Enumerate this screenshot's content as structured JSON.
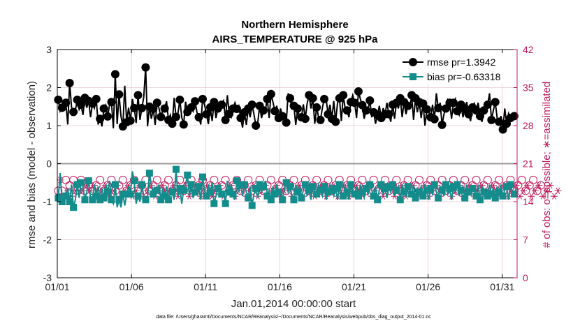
{
  "chart_data": {
    "type": "line",
    "title": "Northern Hemisphere",
    "subtitle": "AIRS_TEMPERATURE @ 925 hPa",
    "xlabel": "Jan.01,2014 00:00:00 start",
    "ylabel": "rmse and bias (model - observation)",
    "ylabel_right": "# of obs: o=possible; ∗=assimilated",
    "footnote": "data file: /Users/gharamti/Documents/NCAR/Reanalysis/~/Documents/NCAR/Reanalysis/webpub/obs_diag_output_2014-01.nc",
    "x_ticks": [
      "01/01",
      "01/06",
      "01/11",
      "01/16",
      "01/21",
      "01/26",
      "01/31"
    ],
    "x_tick_days": [
      1,
      6,
      11,
      16,
      21,
      26,
      31
    ],
    "x_range_days": [
      1,
      32
    ],
    "y_ticks": [
      3,
      2,
      1,
      0,
      -1,
      -2,
      -3
    ],
    "ylim": [
      -3,
      3
    ],
    "y_right_ticks": [
      42,
      35,
      28,
      21,
      14,
      7,
      0
    ],
    "ylim_right": [
      0,
      42
    ],
    "grid": true,
    "legend_position": "top-right",
    "colors": {
      "rmse": "#000000",
      "bias": "#138c8c",
      "obs": "#c0185c",
      "zero_line": "#9a9a9a",
      "grid": "#e6c8d4"
    },
    "series": [
      {
        "name": "rmse pr=1.3942",
        "marker": "circle",
        "values": [
          1.68,
          1.38,
          1.47,
          1.42,
          1.6,
          1.03,
          2.12,
          1.48,
          1.36,
          1.4,
          1.68,
          1.43,
          1.55,
          1.28,
          1.73,
          1.47,
          1.65,
          1.22,
          1.58,
          1.46,
          1.7,
          1.03,
          1.18,
          0.98,
          1.45,
          1.54,
          1.24,
          1.55,
          1.62,
          0.93,
          2.35,
          1.04,
          1.82,
          1.25,
          0.98,
          2.05,
          1.09,
          1.47,
          1.13,
          1.7,
          1.46,
          1.07,
          1.8,
          1.15,
          1.46,
          1.75,
          2.53,
          0.98,
          1.5,
          1.18,
          1.44,
          1.02,
          1.6,
          1.46,
          1.23,
          1.4,
          1.45,
          1.64,
          1.15,
          1.28,
          1.05,
          1.73,
          1.23,
          1.32,
          1.68,
          1.22,
          1.03,
          1.63,
          1.36,
          1.48,
          1.48,
          1.38,
          1.64,
          1.35,
          1.22,
          1.03,
          1.7,
          1.55,
          1.3,
          1.04,
          1.48,
          1.12,
          1.62,
          1.2,
          1.45,
          1.58,
          1.55,
          1.65,
          1.15,
          1.8,
          1.31,
          1.22,
          1.45,
          1.6,
          1.44,
          1.52,
          1.2,
          0.95,
          1.35,
          1.02,
          1.45,
          1.22,
          1.55,
          1.3,
          1.0,
          1.08,
          1.52,
          1.2,
          1.4,
          1.4,
          1.7,
          1.2,
          1.83,
          1.62,
          1.38,
          1.52,
          1.2,
          1.45,
          1.25,
          1.1,
          1.08,
          1.85,
          1.72,
          1.45,
          1.52,
          1.02,
          1.45,
          1.18,
          1.22,
          1.56,
          1.18,
          1.58,
          1.8,
          1.45,
          1.72,
          1.05,
          1.48,
          1.22,
          1.15,
          1.46,
          1.7,
          1.7,
          1.3,
          1.55,
          1.18,
          1.65,
          1.1,
          1.6,
          1.72,
          1.12,
          1.8,
          1.45,
          1.4,
          1.22,
          1.62,
          1.8,
          1.6,
          1.2,
          1.9,
          1.7,
          1.54,
          1.18,
          1.4,
          1.42,
          1.66,
          1.22,
          1.35,
          1.05,
          1.28,
          1.52,
          1.2,
          1.46,
          1.3,
          1.6,
          1.3,
          1.1,
          1.55,
          1.18,
          1.6,
          1.45,
          1.72,
          1.22,
          1.62,
          1.3,
          1.52,
          1.45,
          1.8,
          1.15,
          1.72,
          1.35,
          1.62,
          1.2,
          1.58,
          1.0,
          1.43,
          1.38,
          1.22,
          1.55,
          1.17,
          1.85,
          1.46,
          1.6,
          1.02,
          1.3,
          1.45,
          1.68,
          1.6,
          1.18,
          1.6,
          1.7,
          1.38,
          1.28,
          1.55,
          1.22,
          1.45,
          1.62,
          1.3,
          1.12,
          1.48,
          1.58,
          1.4,
          1.6,
          1.25,
          1.1,
          1.4,
          1.45,
          1.55,
          1.85,
          1.15,
          1.4,
          1.62,
          1.2,
          1.1,
          1.25,
          0.9,
          1.45,
          1.05,
          1.32,
          1.2,
          1.15,
          1.25,
          1.28
        ]
      },
      {
        "name": "bias pr=-0.63318",
        "marker": "square",
        "values": [
          -0.9,
          -0.25,
          -1.0,
          -0.95,
          -0.85,
          -0.65,
          -1.0,
          -0.55,
          -1.15,
          -0.95,
          -0.55,
          -0.9,
          -0.5,
          -0.6,
          -0.95,
          -0.75,
          -0.45,
          -0.9,
          -0.95,
          -0.55,
          -0.85,
          -0.6,
          -0.95,
          -0.65,
          -0.9,
          -0.55,
          -0.75,
          -0.45,
          -0.95,
          -1.05,
          -0.55,
          -1.15,
          -0.95,
          -1.15,
          -0.8,
          -1.1,
          -0.8,
          -0.6,
          -0.8,
          -0.2,
          -0.45,
          -1.05,
          -0.85,
          -1.0,
          -0.55,
          -0.85,
          -0.95,
          -0.85,
          -0.25,
          -0.55,
          -0.8,
          -0.85,
          -0.7,
          -0.55,
          -0.95,
          -0.65,
          -0.85,
          -0.6,
          -0.95,
          -0.65,
          -0.75,
          -0.95,
          -0.15,
          -0.85,
          -0.65,
          -1.05,
          -0.7,
          -0.55,
          -0.3,
          -0.85,
          -0.55,
          -0.9,
          -0.75,
          -0.7,
          -0.6,
          -0.95,
          -0.35,
          -0.7,
          -0.85,
          -0.55,
          -0.75,
          -0.5,
          -1.05,
          -0.85,
          -0.65,
          -0.55,
          -0.8,
          -0.75,
          -1.05,
          -0.45,
          -0.75,
          -0.55,
          -0.8,
          -0.95,
          -0.45,
          -0.7,
          -0.55,
          -0.85,
          -0.55,
          -0.75,
          -0.9,
          -0.6,
          -1.1,
          -0.8,
          -0.65,
          -0.9,
          -0.55,
          -0.75,
          -0.6,
          -0.45,
          -0.85,
          -0.7,
          -0.95,
          -0.6,
          -0.8,
          -0.55,
          -0.75,
          -0.7,
          -0.95,
          -0.65,
          -0.5,
          -0.75,
          -0.6,
          -0.85,
          -0.95,
          -0.55,
          -0.75,
          -0.6,
          -0.9,
          -0.7,
          -0.55,
          -0.85,
          -0.7,
          -0.95,
          -0.6,
          -0.75,
          -0.8,
          -0.55,
          -0.7,
          -0.85,
          -0.6,
          -0.95,
          -0.75,
          -0.55,
          -0.7,
          -0.85,
          -0.65,
          -0.95,
          -0.55,
          -0.75,
          -0.85,
          -0.6,
          -0.75,
          -0.95,
          -0.55,
          -0.7,
          -0.8,
          -0.6,
          -0.85,
          -0.55,
          -0.75,
          -0.9,
          -0.65,
          -0.8,
          -0.55,
          -0.7,
          -0.85,
          -0.6,
          -0.95,
          -0.7,
          -0.55,
          -0.8,
          -0.65,
          -0.9,
          -0.6,
          -0.75,
          -0.55,
          -0.85,
          -0.7,
          -0.6,
          -0.95,
          -0.55,
          -0.75,
          -0.85,
          -0.6,
          -0.7,
          -0.8,
          -0.55,
          -0.9,
          -0.65,
          -0.75,
          -0.6,
          -0.85,
          -0.55,
          -0.7,
          -0.95,
          -0.65,
          -0.8,
          -0.55,
          -0.75,
          -0.9,
          -0.6,
          -0.7,
          -0.85,
          -0.55,
          -0.8,
          -0.65,
          -0.95,
          -0.6,
          -0.75,
          -0.55,
          -0.85,
          -0.7,
          -0.6,
          -0.9,
          -0.55,
          -0.75,
          -0.8,
          -0.65,
          -0.7,
          -0.85,
          -0.55,
          -0.95,
          -0.6,
          -0.75,
          -0.7,
          -0.85,
          -0.55,
          -0.8,
          -0.65,
          -0.9,
          -0.6,
          -0.75,
          -0.55,
          -0.85,
          -0.7,
          -0.6,
          -0.95,
          -0.55,
          -0.75,
          -0.8,
          -0.65
        ]
      },
      {
        "name": "# obs possible",
        "marker": "open-circle",
        "values": [
          16,
          19,
          16,
          16,
          18,
          17,
          17,
          16,
          18,
          17,
          16,
          17,
          18,
          17,
          16,
          18,
          17,
          17,
          16,
          18,
          17,
          16,
          18,
          17,
          16,
          18,
          17,
          16,
          18,
          17,
          16,
          18,
          17,
          16,
          18,
          17,
          16,
          18,
          17,
          16,
          18,
          17,
          16,
          18,
          17,
          16,
          18,
          17,
          16,
          18,
          17,
          16,
          18,
          17,
          16,
          18,
          17,
          16,
          18,
          17,
          16,
          18,
          17,
          16,
          18,
          17,
          16,
          18,
          17,
          16,
          18,
          17,
          16,
          18,
          17,
          16,
          18,
          17,
          16,
          18,
          17,
          16,
          18,
          17,
          16,
          18,
          17,
          16,
          18,
          17,
          16,
          18,
          17,
          16,
          18,
          17,
          16,
          18,
          17,
          16,
          18,
          17,
          16,
          18,
          17,
          16,
          18,
          17,
          16,
          18,
          17,
          16,
          18,
          17,
          16,
          18,
          17,
          16,
          18,
          17,
          16,
          18,
          17,
          16,
          18,
          17,
          16,
          18,
          17,
          16,
          18,
          17,
          16,
          18,
          17,
          16,
          18,
          17,
          16,
          18,
          17,
          16,
          18,
          17,
          16,
          18,
          17,
          16,
          18,
          17,
          16,
          18,
          17,
          16,
          18,
          17,
          16,
          18,
          17,
          16,
          18,
          17,
          16,
          18,
          17,
          16,
          18,
          17,
          16,
          18,
          17,
          16,
          18,
          17,
          16,
          18,
          17,
          16,
          18,
          17,
          16,
          18,
          17,
          16,
          18,
          17,
          16,
          18,
          17,
          16,
          18,
          17,
          16,
          18,
          17,
          16,
          18,
          17,
          16,
          18,
          17,
          16,
          18,
          17,
          16,
          18,
          17,
          16,
          18,
          17,
          16,
          18,
          17,
          16,
          18,
          17,
          16,
          18,
          17,
          16,
          18,
          17,
          16,
          18,
          17,
          16,
          18,
          17,
          16,
          18,
          17,
          16,
          18,
          17,
          16,
          18,
          17,
          16,
          18,
          17,
          16,
          18,
          17,
          16,
          18,
          17,
          16,
          18,
          17,
          16,
          18,
          17,
          16,
          18,
          17,
          0
        ]
      },
      {
        "name": "# obs assimilated",
        "marker": "asterisk",
        "values": [
          15,
          18,
          15,
          15,
          17,
          16,
          16,
          15,
          17,
          16,
          15,
          16,
          17,
          16,
          15,
          17,
          16,
          16,
          15,
          17,
          16,
          15,
          17,
          16,
          15,
          17,
          16,
          15,
          17,
          16,
          15,
          17,
          16,
          15,
          17,
          16,
          15,
          17,
          16,
          15,
          17,
          16,
          15,
          17,
          16,
          15,
          17,
          16,
          15,
          17,
          16,
          15,
          17,
          16,
          15,
          17,
          16,
          15,
          17,
          16,
          15,
          17,
          16,
          15,
          17,
          16,
          15,
          17,
          16,
          15,
          17,
          16,
          15,
          17,
          16,
          15,
          17,
          16,
          15,
          17,
          16,
          15,
          17,
          16,
          15,
          17,
          16,
          15,
          17,
          16,
          15,
          17,
          16,
          15,
          17,
          16,
          15,
          17,
          16,
          15,
          17,
          16,
          15,
          17,
          16,
          15,
          17,
          16,
          15,
          17,
          16,
          15,
          17,
          16,
          15,
          17,
          16,
          15,
          17,
          16,
          15,
          17,
          16,
          15,
          17,
          16,
          15,
          17,
          16,
          15,
          17,
          16,
          15,
          17,
          16,
          15,
          17,
          16,
          15,
          17,
          16,
          15,
          17,
          16,
          15,
          17,
          16,
          15,
          17,
          16,
          15,
          17,
          16,
          15,
          17,
          16,
          15,
          17,
          16,
          15,
          17,
          16,
          15,
          17,
          16,
          15,
          17,
          16,
          15,
          17,
          16,
          15,
          17,
          16,
          15,
          17,
          16,
          15,
          17,
          16,
          15,
          17,
          16,
          15,
          17,
          16,
          15,
          17,
          16,
          15,
          17,
          16,
          15,
          17,
          16,
          15,
          17,
          16,
          15,
          17,
          16,
          15,
          17,
          16,
          15,
          17,
          16,
          15,
          17,
          16,
          15,
          17,
          16,
          15,
          17,
          16,
          15,
          17,
          16,
          15,
          17,
          16,
          15,
          17,
          16,
          15,
          17,
          16,
          15,
          17,
          16,
          15,
          17,
          16,
          15,
          17,
          16,
          15,
          17,
          16,
          15,
          17,
          16,
          15,
          17,
          16,
          15,
          17,
          16,
          15,
          17,
          16,
          15,
          17,
          16,
          15,
          17,
          16,
          15,
          17,
          16,
          15,
          17,
          16,
          0
        ]
      }
    ]
  }
}
